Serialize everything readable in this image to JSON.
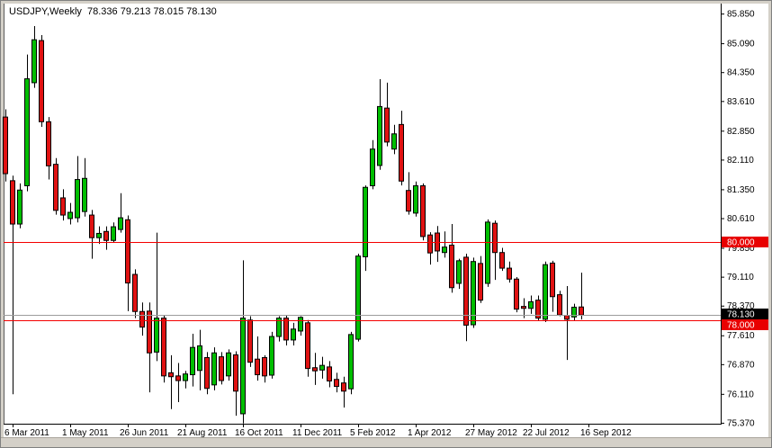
{
  "header": {
    "title": "USDJPY,Weekly  78.336 79.213 78.015 78.130"
  },
  "colors": {
    "background": "#ffffff",
    "chrome": "#d4d0c8",
    "bull": "#00BE00",
    "bear": "#E01212",
    "outline": "#000000",
    "hline_red": "#F40000",
    "current_line_gray": "#9C9C9C",
    "label_red_bg": "#E80000",
    "label_black_bg": "#000000",
    "label_text_white": "#ffffff",
    "axis_text": "#000000"
  },
  "chart_data": {
    "type": "candlestick",
    "symbol": "USDJPY",
    "timeframe": "Weekly",
    "ohlc_display": {
      "open": "78.336",
      "high": "79.213",
      "low": "78.015",
      "close": "78.130"
    },
    "grid": false,
    "legend": false,
    "ylim": [
      75.35,
      85.85
    ],
    "y_axis_ticks": [
      85.85,
      85.09,
      84.35,
      83.61,
      82.85,
      82.11,
      81.35,
      80.61,
      79.85,
      79.11,
      78.37,
      77.61,
      76.87,
      76.11,
      75.37
    ],
    "x_axis_labels": [
      "6 Mar 2011",
      "1 May 2011",
      "26 Jun 2011",
      "21 Aug 2011",
      "16 Oct 2011",
      "11 Dec 2011",
      "5 Feb 2012",
      "1 Apr 2012",
      "27 May 2012",
      "22 Jul 2012",
      "16 Sep 2012"
    ],
    "horizontal_lines": [
      {
        "price": 80.0,
        "label": "80.000"
      },
      {
        "price": 78.0,
        "label": "78.000"
      }
    ],
    "current_price_line": {
      "price": 78.13,
      "label": "78.130"
    },
    "candles": [
      [
        83.2,
        83.4,
        81.55,
        81.75
      ],
      [
        81.57,
        81.7,
        76.1,
        80.46
      ],
      [
        80.46,
        81.5,
        80.35,
        81.33
      ],
      [
        81.44,
        84.8,
        81.3,
        84.18
      ],
      [
        84.08,
        85.53,
        83.95,
        85.18
      ],
      [
        85.16,
        85.3,
        82.95,
        83.08
      ],
      [
        83.08,
        83.2,
        81.6,
        81.95
      ],
      [
        81.99,
        82.15,
        80.7,
        80.81
      ],
      [
        81.13,
        81.35,
        80.55,
        80.69
      ],
      [
        80.6,
        81.0,
        80.45,
        80.76
      ],
      [
        80.62,
        82.2,
        80.5,
        81.6
      ],
      [
        80.78,
        82.15,
        80.65,
        81.63
      ],
      [
        80.69,
        80.82,
        79.57,
        80.11
      ],
      [
        80.11,
        80.4,
        79.95,
        80.22
      ],
      [
        80.27,
        80.4,
        79.8,
        80.04
      ],
      [
        80.04,
        80.5,
        79.99,
        80.39
      ],
      [
        80.32,
        81.25,
        80.24,
        80.62
      ],
      [
        80.57,
        80.68,
        78.23,
        78.95
      ],
      [
        79.17,
        79.3,
        78.05,
        78.22
      ],
      [
        78.22,
        78.45,
        77.6,
        77.82
      ],
      [
        78.23,
        78.45,
        76.15,
        77.16
      ],
      [
        77.18,
        80.24,
        76.95,
        78.05
      ],
      [
        78.05,
        78.12,
        76.4,
        76.57
      ],
      [
        76.65,
        77.1,
        75.72,
        76.55
      ],
      [
        76.57,
        76.9,
        75.9,
        76.45
      ],
      [
        76.45,
        76.7,
        76.25,
        76.62
      ],
      [
        76.6,
        77.65,
        76.3,
        77.3
      ],
      [
        76.71,
        77.75,
        76.2,
        77.34
      ],
      [
        77.04,
        77.18,
        76.1,
        76.25
      ],
      [
        76.34,
        77.3,
        76.2,
        77.16
      ],
      [
        77.06,
        77.18,
        76.35,
        76.45
      ],
      [
        76.57,
        77.25,
        76.45,
        77.16
      ],
      [
        77.11,
        77.2,
        75.55,
        76.18
      ],
      [
        75.6,
        79.53,
        75.35,
        78.05
      ],
      [
        78.0,
        78.1,
        76.8,
        76.92
      ],
      [
        77.0,
        77.58,
        76.45,
        76.6
      ],
      [
        77.04,
        77.1,
        76.4,
        76.57
      ],
      [
        76.59,
        77.7,
        76.5,
        77.58
      ],
      [
        77.58,
        78.1,
        77.45,
        78.05
      ],
      [
        78.05,
        78.12,
        77.35,
        77.49
      ],
      [
        77.49,
        77.93,
        77.35,
        77.77
      ],
      [
        77.72,
        78.1,
        77.6,
        78.07
      ],
      [
        77.93,
        78.0,
        76.55,
        76.76
      ],
      [
        76.78,
        77.16,
        76.34,
        76.7
      ],
      [
        76.72,
        77.06,
        76.5,
        76.84
      ],
      [
        76.8,
        76.95,
        76.28,
        76.44
      ],
      [
        76.48,
        76.65,
        76.15,
        76.3
      ],
      [
        76.39,
        76.55,
        75.76,
        76.18
      ],
      [
        76.24,
        77.7,
        76.1,
        77.63
      ],
      [
        77.51,
        79.7,
        77.45,
        79.64
      ],
      [
        79.62,
        81.45,
        79.26,
        81.4
      ],
      [
        81.44,
        82.61,
        81.35,
        82.38
      ],
      [
        81.96,
        84.17,
        81.85,
        83.47
      ],
      [
        83.43,
        84.08,
        82.45,
        82.56
      ],
      [
        82.38,
        83.0,
        82.25,
        82.77
      ],
      [
        83.01,
        83.36,
        81.45,
        81.56
      ],
      [
        81.32,
        81.79,
        80.7,
        80.79
      ],
      [
        80.74,
        81.55,
        80.65,
        81.44
      ],
      [
        81.44,
        81.5,
        80.04,
        80.14
      ],
      [
        80.18,
        80.25,
        79.42,
        79.72
      ],
      [
        80.23,
        80.41,
        79.49,
        79.77
      ],
      [
        79.73,
        80.27,
        79.6,
        79.87
      ],
      [
        79.92,
        80.46,
        78.7,
        78.83
      ],
      [
        78.94,
        79.57,
        78.8,
        79.52
      ],
      [
        79.61,
        79.7,
        77.46,
        77.87
      ],
      [
        77.88,
        79.6,
        77.8,
        79.5
      ],
      [
        79.45,
        79.64,
        78.44,
        78.51
      ],
      [
        78.94,
        80.58,
        78.85,
        80.51
      ],
      [
        80.48,
        80.55,
        79.03,
        79.73
      ],
      [
        79.73,
        79.85,
        79.26,
        79.33
      ],
      [
        79.33,
        79.5,
        78.96,
        79.05
      ],
      [
        79.05,
        79.1,
        78.2,
        78.28
      ],
      [
        78.35,
        78.56,
        78.05,
        78.3
      ],
      [
        78.3,
        78.63,
        78.16,
        78.47
      ],
      [
        78.51,
        78.63,
        77.98,
        78.05
      ],
      [
        78.02,
        79.5,
        77.95,
        79.42
      ],
      [
        79.46,
        79.52,
        78.21,
        78.6
      ],
      [
        78.65,
        78.75,
        78.1,
        78.13
      ],
      [
        78.12,
        78.87,
        76.98,
        78.02
      ],
      [
        78.08,
        78.42,
        77.98,
        78.33
      ],
      [
        78.336,
        79.213,
        78.015,
        78.13
      ]
    ]
  }
}
